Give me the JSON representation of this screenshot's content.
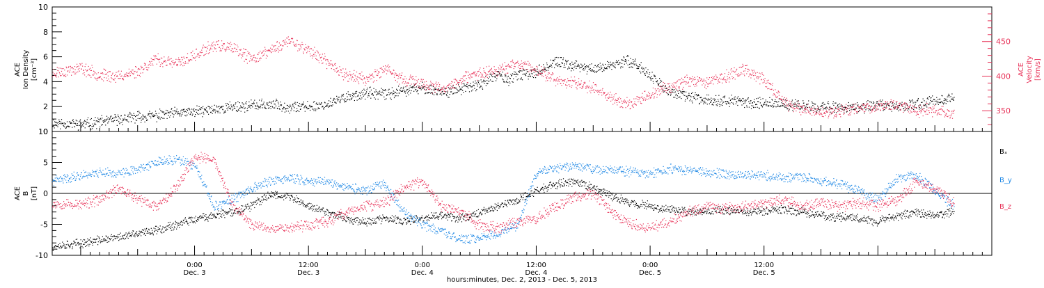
{
  "chart_data": [
    {
      "type": "scatter",
      "panel": "top",
      "ylabel_left": [
        "ACE",
        "Ion Density",
        "[cm⁻³]"
      ],
      "ylabel_right": [
        "ACE",
        "Velocity",
        "[km/s]"
      ],
      "ylim_left": [
        0,
        10
      ],
      "yticks_left": [
        0,
        2,
        4,
        6,
        8,
        10
      ],
      "ylim_right": [
        320,
        500
      ],
      "yticks_right": [
        350,
        400,
        450
      ],
      "series": [
        {
          "name": "Ion Density",
          "axis": "left",
          "color": "#000000",
          "x": [
            -15,
            -12,
            -10,
            -8,
            -6,
            -4,
            -2,
            0,
            2,
            4,
            6,
            8,
            10,
            12,
            14,
            16,
            18,
            20,
            22,
            24,
            26,
            28,
            30,
            32,
            33,
            34,
            36,
            38,
            40,
            42,
            44,
            46,
            48,
            50,
            52,
            54,
            56,
            58,
            60,
            62,
            64,
            66,
            68,
            70,
            72,
            74,
            76,
            78,
            80
          ],
          "y": [
            0.7,
            0.6,
            0.8,
            1.0,
            1.2,
            1.3,
            1.5,
            1.6,
            1.8,
            2.0,
            2.1,
            2.2,
            2.0,
            2.0,
            2.2,
            2.8,
            3.1,
            3.0,
            3.3,
            3.5,
            3.2,
            3.4,
            3.8,
            4.6,
            4.2,
            4.5,
            4.8,
            5.6,
            5.3,
            5.0,
            5.4,
            5.7,
            4.5,
            3.2,
            2.8,
            2.6,
            2.5,
            2.4,
            2.3,
            2.2,
            2.1,
            2.0,
            1.9,
            2.0,
            2.1,
            2.0,
            2.2,
            2.5,
            2.8
          ]
        },
        {
          "name": "Velocity",
          "axis": "right",
          "color": "#e8345a",
          "x": [
            -15,
            -12,
            -10,
            -8,
            -6,
            -4,
            -2,
            0,
            2,
            4,
            6,
            8,
            10,
            12,
            14,
            16,
            18,
            20,
            22,
            24,
            26,
            28,
            30,
            32,
            34,
            36,
            38,
            40,
            42,
            44,
            46,
            48,
            50,
            52,
            54,
            56,
            58,
            60,
            62,
            64,
            66,
            68,
            70,
            72,
            74,
            76,
            78,
            80
          ],
          "y": [
            405,
            412,
            402,
            400,
            408,
            425,
            418,
            430,
            445,
            440,
            425,
            438,
            452,
            438,
            420,
            402,
            396,
            410,
            395,
            390,
            380,
            395,
            405,
            410,
            418,
            410,
            395,
            390,
            385,
            368,
            360,
            375,
            385,
            395,
            392,
            400,
            410,
            395,
            362,
            352,
            348,
            350,
            355,
            357,
            360,
            350,
            352,
            345
          ]
        }
      ]
    },
    {
      "type": "scatter",
      "panel": "bottom",
      "ylabel_left": [
        "ACE",
        "B",
        "[nT]"
      ],
      "ylim": [
        -10,
        10
      ],
      "yticks": [
        -10,
        -5,
        0,
        5,
        10
      ],
      "legend": [
        "Bₓ",
        "B_y",
        "B_z"
      ],
      "legend_position": "right",
      "series": [
        {
          "name": "Bₓ",
          "color": "#000000",
          "x": [
            -15,
            -12,
            -10,
            -8,
            -6,
            -4,
            -2,
            0,
            2,
            4,
            6,
            8,
            10,
            12,
            14,
            16,
            18,
            20,
            22,
            24,
            26,
            28,
            30,
            32,
            34,
            36,
            38,
            40,
            42,
            44,
            46,
            48,
            50,
            52,
            54,
            56,
            58,
            60,
            62,
            64,
            66,
            68,
            70,
            72,
            74,
            76,
            78,
            80
          ],
          "y": [
            -8.5,
            -8.0,
            -7.5,
            -7.0,
            -6.5,
            -5.8,
            -5.0,
            -4.2,
            -3.5,
            -3.0,
            -2.0,
            0.0,
            -0.5,
            -2.0,
            -3.0,
            -4.0,
            -4.5,
            -4.0,
            -4.5,
            -4.0,
            -3.5,
            -4.0,
            -3.0,
            -2.0,
            -1.0,
            0.5,
            1.5,
            2.0,
            1.0,
            -0.5,
            -1.5,
            -2.0,
            -2.5,
            -2.8,
            -3.0,
            -2.5,
            -3.0,
            -2.8,
            -2.5,
            -3.0,
            -3.5,
            -3.8,
            -4.0,
            -4.5,
            -3.5,
            -3.0,
            -3.5,
            -3.0
          ]
        },
        {
          "name": "B_y",
          "color": "#1f88e5",
          "x": [
            -15,
            -12,
            -10,
            -8,
            -6,
            -4,
            -2,
            0,
            2,
            4,
            6,
            8,
            10,
            12,
            14,
            16,
            18,
            20,
            22,
            24,
            26,
            28,
            30,
            32,
            34,
            36,
            38,
            40,
            42,
            44,
            46,
            48,
            50,
            52,
            54,
            56,
            58,
            60,
            62,
            64,
            66,
            68,
            70,
            72,
            74,
            76,
            78,
            80
          ],
          "y": [
            2.0,
            3.0,
            3.5,
            3.2,
            4.0,
            5.0,
            5.5,
            4.5,
            -2.0,
            -1.0,
            1.0,
            2.0,
            2.5,
            2.0,
            2.0,
            1.0,
            0.5,
            1.5,
            -3.0,
            -5.0,
            -6.0,
            -7.5,
            -7.0,
            -6.5,
            -5.0,
            3.5,
            4.0,
            4.5,
            4.0,
            3.8,
            3.5,
            3.2,
            4.0,
            3.8,
            3.5,
            3.2,
            3.0,
            3.0,
            2.5,
            2.8,
            2.0,
            1.5,
            0.5,
            -1.0,
            2.5,
            3.0,
            0.5,
            -2.0
          ]
        },
        {
          "name": "B_z",
          "color": "#e8345a",
          "x": [
            -15,
            -12,
            -10,
            -8,
            -6,
            -4,
            -2,
            0,
            2,
            4,
            6,
            8,
            10,
            12,
            14,
            16,
            18,
            20,
            22,
            24,
            26,
            28,
            30,
            32,
            34,
            36,
            38,
            40,
            42,
            44,
            46,
            48,
            50,
            52,
            54,
            56,
            58,
            60,
            62,
            64,
            66,
            68,
            70,
            72,
            74,
            76,
            78,
            80
          ],
          "y": [
            -1.5,
            -1.8,
            -1.0,
            1.0,
            -1.0,
            -2.0,
            1.0,
            6.0,
            5.5,
            -2.0,
            -5.0,
            -5.5,
            -5.5,
            -5.0,
            -4.5,
            -3.0,
            -2.0,
            -1.5,
            1.0,
            2.0,
            -2.0,
            -3.0,
            -5.0,
            -5.5,
            -4.5,
            -4.0,
            -2.0,
            -0.5,
            0.0,
            -3.0,
            -5.0,
            -5.5,
            -4.5,
            -3.0,
            -2.0,
            -2.5,
            -2.0,
            -1.5,
            -1.0,
            -2.0,
            -1.5,
            -2.0,
            -1.5,
            -2.0,
            -1.0,
            2.0,
            1.0,
            -1.5
          ]
        }
      ]
    }
  ],
  "x_axis": {
    "xlim": [
      -15,
      84
    ],
    "ticks": [
      {
        "hour": 0,
        "time": "0:00",
        "date": "Dec. 3"
      },
      {
        "hour": 12,
        "time": "12:00",
        "date": "Dec. 3"
      },
      {
        "hour": 24,
        "time": "0:00",
        "date": "Dec. 4"
      },
      {
        "hour": 36,
        "time": "12:00",
        "date": "Dec. 4"
      },
      {
        "hour": 48,
        "time": "0:00",
        "date": "Dec. 5"
      },
      {
        "hour": 60,
        "time": "12:00",
        "date": "Dec. 5"
      }
    ],
    "xlabel": "hours:minutes, Dec.  2, 2013 - Dec.  5, 2013"
  },
  "colors": {
    "density": "#000000",
    "velocity": "#e8345a",
    "bx": "#000000",
    "by": "#1f88e5",
    "bz": "#e8345a"
  }
}
